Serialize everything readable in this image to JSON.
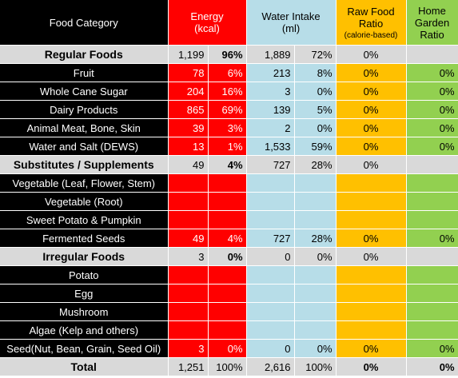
{
  "header": {
    "category": "Food Category",
    "energy": "Energy",
    "energy_unit": "(kcal)",
    "water": "Water Intake",
    "water_unit": "(ml)",
    "raw_line1": "Raw Food",
    "raw_line2": "Ratio",
    "raw_sub": "(calorie-based)",
    "hg_line1": "Home",
    "hg_line2": "Garden",
    "hg_line3": "Ratio"
  },
  "rows": [
    {
      "cat": "Regular Foods",
      "ev": "1,199",
      "ep": "96%",
      "wv": "1,889",
      "wp": "72%",
      "raw": "0%",
      "hg": ""
    },
    {
      "cat": "Fruit",
      "ev": "78",
      "ep": "6%",
      "wv": "213",
      "wp": "8%",
      "raw": "0%",
      "hg": "0%"
    },
    {
      "cat": "Whole Cane Sugar",
      "ev": "204",
      "ep": "16%",
      "wv": "3",
      "wp": "0%",
      "raw": "0%",
      "hg": "0%"
    },
    {
      "cat": "Dairy Products",
      "ev": "865",
      "ep": "69%",
      "wv": "139",
      "wp": "5%",
      "raw": "0%",
      "hg": "0%"
    },
    {
      "cat": "Animal Meat, Bone, Skin",
      "ev": "39",
      "ep": "3%",
      "wv": "2",
      "wp": "0%",
      "raw": "0%",
      "hg": "0%"
    },
    {
      "cat": "Water and Salt (DEWS)",
      "ev": "13",
      "ep": "1%",
      "wv": "1,533",
      "wp": "59%",
      "raw": "0%",
      "hg": "0%"
    },
    {
      "cat": "Substitutes / Supplements",
      "ev": "49",
      "ep": "4%",
      "wv": "727",
      "wp": "28%",
      "raw": "0%",
      "hg": ""
    },
    {
      "cat": "Vegetable (Leaf, Flower, Stem)",
      "ev": "",
      "ep": "",
      "wv": "",
      "wp": "",
      "raw": "",
      "hg": ""
    },
    {
      "cat": "Vegetable (Root)",
      "ev": "",
      "ep": "",
      "wv": "",
      "wp": "",
      "raw": "",
      "hg": ""
    },
    {
      "cat": "Sweet Potato & Pumpkin",
      "ev": "",
      "ep": "",
      "wv": "",
      "wp": "",
      "raw": "",
      "hg": ""
    },
    {
      "cat": "Fermented Seeds",
      "ev": "49",
      "ep": "4%",
      "wv": "727",
      "wp": "28%",
      "raw": "0%",
      "hg": "0%"
    },
    {
      "cat": "Irregular Foods",
      "ev": "3",
      "ep": "0%",
      "wv": "0",
      "wp": "0%",
      "raw": "0%",
      "hg": ""
    },
    {
      "cat": "Potato",
      "ev": "",
      "ep": "",
      "wv": "",
      "wp": "",
      "raw": "",
      "hg": ""
    },
    {
      "cat": "Egg",
      "ev": "",
      "ep": "",
      "wv": "",
      "wp": "",
      "raw": "",
      "hg": ""
    },
    {
      "cat": "Mushroom",
      "ev": "",
      "ep": "",
      "wv": "",
      "wp": "",
      "raw": "",
      "hg": ""
    },
    {
      "cat": "Algae (Kelp and others)",
      "ev": "",
      "ep": "",
      "wv": "",
      "wp": "",
      "raw": "",
      "hg": ""
    },
    {
      "cat": "Seed(Nut, Bean, Grain, Seed Oil)",
      "ev": "3",
      "ep": "0%",
      "wv": "0",
      "wp": "0%",
      "raw": "0%",
      "hg": "0%"
    },
    {
      "cat": "Total",
      "ev": "1,251",
      "ep": "100%",
      "wv": "2,616",
      "wp": "100%",
      "raw": "0%",
      "hg": "0%"
    }
  ]
}
